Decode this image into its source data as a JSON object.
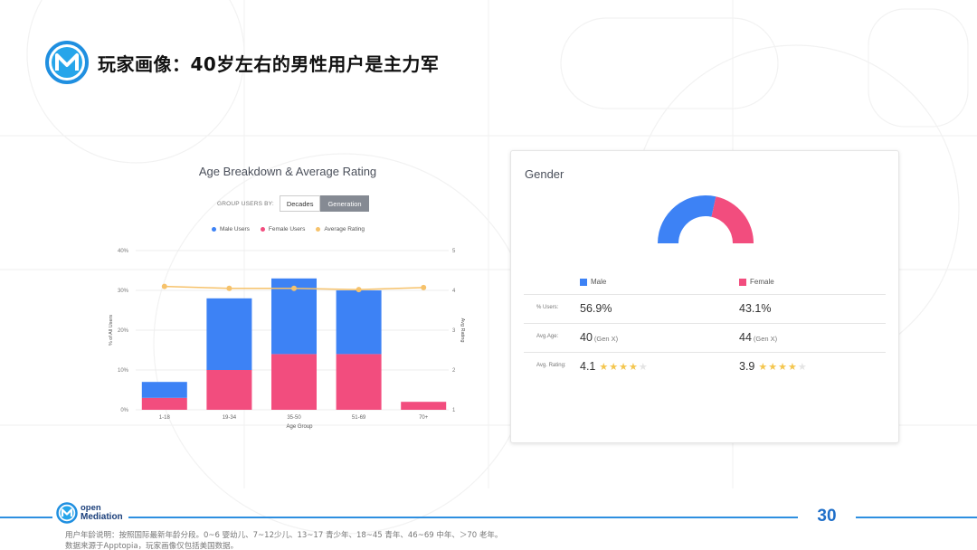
{
  "title": "玩家画像：40岁左右的男性用户是主力军",
  "colors": {
    "male": "#3d82f5",
    "female": "#f24d7e",
    "rating": "#f6c26b",
    "accent": "#2e8fe0"
  },
  "chart_data": {
    "type": "bar",
    "title": "Age Breakdown & Average Rating",
    "group_by_label": "GROUP USERS BY:",
    "group_by_options": [
      "Decades",
      "Generation"
    ],
    "group_by_selected": "Generation",
    "categories": [
      "1-18",
      "19-34",
      "35-50",
      "51-69",
      "70+"
    ],
    "series": [
      {
        "name": "Male Users",
        "type": "stacked-bar",
        "axis": "left",
        "values": [
          4,
          18,
          19,
          16,
          0
        ]
      },
      {
        "name": "Female Users",
        "type": "stacked-bar",
        "axis": "left",
        "values": [
          3,
          10,
          14,
          14,
          2
        ]
      },
      {
        "name": "Average Rating",
        "type": "line",
        "axis": "right",
        "values": [
          4.1,
          4.05,
          4.05,
          4.02,
          4.07
        ]
      }
    ],
    "xlabel": "Age Group",
    "ylabel": "% of All Users",
    "y2label": "Avg Rating",
    "ylim": [
      0,
      40
    ],
    "y2lim": [
      1,
      5
    ],
    "yticks": [
      "0%",
      "10%",
      "20%",
      "30%",
      "40%"
    ],
    "y2ticks": [
      "1",
      "2",
      "3",
      "4",
      "5"
    ],
    "legend_position": "top"
  },
  "gender": {
    "title": "Gender",
    "male_label": "Male",
    "female_label": "Female",
    "male_pct": 56.9,
    "female_pct": 43.1,
    "rows": [
      {
        "label": "% Users:",
        "male": "56.9%",
        "male_sub": "",
        "female": "43.1%",
        "female_sub": ""
      },
      {
        "label": "Avg.Age:",
        "male": "40",
        "male_sub": "(Gen X)",
        "female": "44",
        "female_sub": "(Gen X)"
      },
      {
        "label": "Avg. Rating:",
        "male": "4.1",
        "male_sub": "",
        "female": "3.9",
        "female_sub": ""
      }
    ],
    "male_stars": 4,
    "female_stars": 4,
    "stars_total": 5
  },
  "footer": {
    "logo_line1": "open",
    "logo_line2": "Mediation",
    "page_number": "30",
    "note1": "用户年龄说明：按照国际最新年龄分段。0~6 婴幼儿、7~12少儿、13~17 青少年、18~45 青年、46~69 中年、＞70 老年。",
    "note2": "数据来源于Apptopia，玩家画像仅包括美国数据。"
  }
}
